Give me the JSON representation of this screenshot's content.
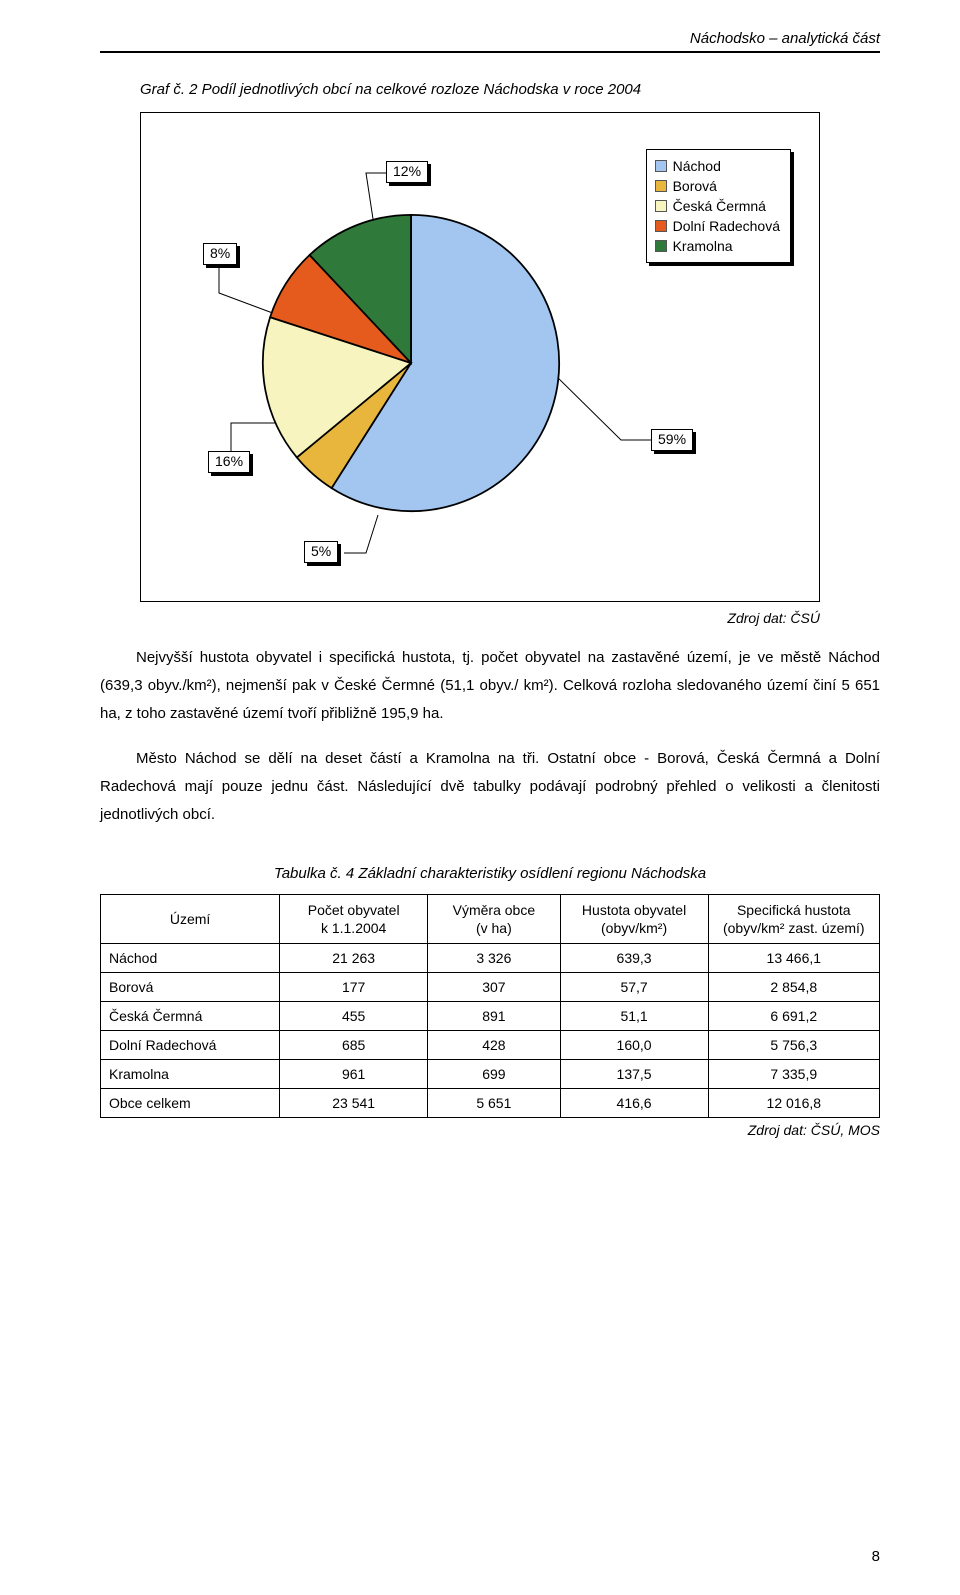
{
  "header": {
    "running_title": "Náchodsko – analytická část"
  },
  "chart": {
    "title": "Graf č. 2   Podíl jednotlivých obcí na celkové rozloze Náchodska v roce 2004",
    "type": "pie",
    "slices": [
      {
        "name": "Náchod",
        "value": 59,
        "label": "59%",
        "color": "#a2c6f0"
      },
      {
        "name": "Borová",
        "value": 5,
        "label": "5%",
        "color": "#e8b63c"
      },
      {
        "name": "Česká Čermná",
        "value": 16,
        "label": "16%",
        "color": "#f7f4bf"
      },
      {
        "name": "Dolní Radechová",
        "value": 8,
        "label": "8%",
        "color": "#e55a1d"
      },
      {
        "name": "Kramolna",
        "value": 12,
        "label": "12%",
        "color": "#2f7a3a"
      }
    ],
    "outline_color": "#000000",
    "background": "#ffffff",
    "leader_color": "#000000",
    "label_fontsize": 14,
    "legend": {
      "items": [
        {
          "label": "Náchod",
          "color": "#a2c6f0"
        },
        {
          "label": "Borová",
          "color": "#e8b63c"
        },
        {
          "label": "Česká Čermná",
          "color": "#f7f4bf"
        },
        {
          "label": "Dolní Radechová",
          "color": "#e55a1d"
        },
        {
          "label": "Kramolna",
          "color": "#2f7a3a"
        }
      ]
    },
    "source": "Zdroj dat: ČSÚ"
  },
  "paragraphs": {
    "p1": "Nejvyšší hustota obyvatel i specifická hustota, tj. počet obyvatel na zastavěné území, je ve městě Náchod (639,3 obyv./km²), nejmenší pak v České Čermné (51,1 obyv./ km²). Celková rozloha sledovaného území činí 5 651 ha, z toho zastavěné území tvoří přibližně 195,9 ha.",
    "p2": "Město Náchod se dělí na deset částí a Kramolna na tři. Ostatní obce - Borová, Česká Čermná a Dolní Radechová mají pouze jednu část. Následující dvě tabulky podávají podrobný přehled o velikosti a členitosti jednotlivých obcí."
  },
  "table": {
    "title": "Tabulka č. 4   Základní charakteristiky osídlení regionu Náchodska",
    "columns": [
      {
        "label": "Území",
        "align": "left",
        "width": "23%"
      },
      {
        "label": "Počet obyvatel\nk 1.1.2004",
        "align": "center",
        "width": "19%"
      },
      {
        "label": "Výměra obce\n(v ha)",
        "align": "center",
        "width": "17%"
      },
      {
        "label": "Hustota obyvatel\n(obyv/km²)",
        "align": "center",
        "width": "19%"
      },
      {
        "label": "Specifická hustota\n(obyv/km² zast. území)",
        "align": "center",
        "width": "22%"
      }
    ],
    "rows": [
      [
        "Náchod",
        "21 263",
        "3 326",
        "639,3",
        "13 466,1"
      ],
      [
        "Borová",
        "177",
        "307",
        "57,7",
        "2 854,8"
      ],
      [
        "Česká Čermná",
        "455",
        "891",
        "51,1",
        "6 691,2"
      ],
      [
        "Dolní Radechová",
        "685",
        "428",
        "160,0",
        "5 756,3"
      ],
      [
        "Kramolna",
        "961",
        "699",
        "137,5",
        "7 335,9"
      ],
      [
        "Obce celkem",
        "23 541",
        "5 651",
        "416,6",
        "12 016,8"
      ]
    ],
    "source": "Zdroj dat: ČSÚ, MOS"
  },
  "page_number": "8"
}
